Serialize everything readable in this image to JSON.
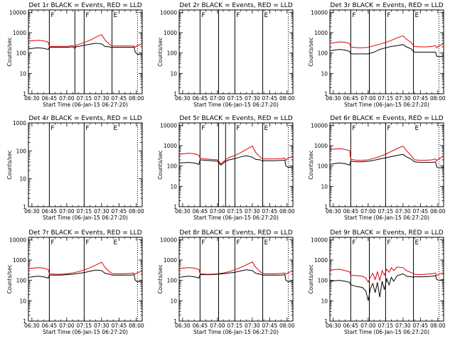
{
  "figure": {
    "xlabel": "Start Time (06-Jan-15 06:27:20)",
    "ylabel": "Counts/sec",
    "x_tick_labels": [
      "06:30",
      "06:45",
      "07:00",
      "07:15",
      "07:30",
      "07:45",
      "08:00"
    ],
    "x_tick_minutes": [
      0,
      15,
      30,
      45,
      60,
      75,
      90
    ],
    "y_tick_labels": [
      "1",
      "10",
      "100",
      "1000",
      "10000"
    ],
    "y_tick_values": [
      1,
      10,
      100,
      1000,
      10000
    ],
    "colors": {
      "events": "#000000",
      "lld": "#e00000",
      "axes": "#000000",
      "background": "#ffffff"
    }
  },
  "chart_data": [
    {
      "type": "line",
      "title": "Det 1r BLACK = Events, RED = LLD",
      "xlabel": "Start Time (06-Jan-15 06:27:20)",
      "ylabel": "Counts/sec",
      "yscale": "log",
      "xlim": [
        -3,
        95
      ],
      "ylim": [
        1,
        13000
      ],
      "vlines_minutes": [
        15,
        37,
        45,
        69
      ],
      "dotted_vlines_minutes": [
        91
      ],
      "marker_letters": [
        {
          "text": "F",
          "minute": 15
        },
        {
          "text": "F",
          "minute": 45
        },
        {
          "text": "E",
          "minute": 69
        }
      ],
      "x": [
        -3,
        5,
        10,
        14,
        15,
        20,
        25,
        30,
        35,
        37,
        38,
        40,
        45,
        50,
        55,
        60,
        63,
        67,
        69,
        70,
        75,
        80,
        85,
        88,
        89,
        91,
        95
      ],
      "series": [
        {
          "name": "Events",
          "color": "#000000",
          "values": [
            160,
            180,
            170,
            150,
            190,
            190,
            190,
            190,
            200,
            170,
            200,
            210,
            240,
            270,
            300,
            280,
            210,
            200,
            180,
            190,
            190,
            190,
            190,
            190,
            110,
            85,
            90
          ]
        },
        {
          "name": "LLD",
          "color": "#e00000",
          "values": [
            380,
            420,
            400,
            340,
            210,
            210,
            210,
            210,
            230,
            200,
            240,
            260,
            330,
            420,
            600,
            800,
            430,
            260,
            220,
            220,
            220,
            220,
            220,
            220,
            190,
            240,
            260
          ]
        }
      ]
    },
    {
      "type": "line",
      "title": "Det 2r BLACK = Events, RED = LLD",
      "xlabel": "Start Time (06-Jan-15 06:27:20)",
      "ylabel": "Counts/sec",
      "yscale": "log",
      "xlim": [
        -3,
        95
      ],
      "ylim": [
        1,
        13000
      ],
      "vlines_minutes": [
        15,
        31,
        45,
        69
      ],
      "dotted_vlines_minutes": [
        91
      ],
      "marker_letters": [
        {
          "text": "F",
          "minute": 15
        },
        {
          "text": "F",
          "minute": 45
        },
        {
          "text": "E",
          "minute": 69
        }
      ],
      "x": [],
      "series": [
        {
          "name": "Events",
          "color": "#000000",
          "values": []
        },
        {
          "name": "LLD",
          "color": "#e00000",
          "values": []
        }
      ]
    },
    {
      "type": "line",
      "title": "Det 3r BLACK = Events, RED = LLD",
      "xlabel": "Start Time (06-Jan-15 06:27:20)",
      "ylabel": "Counts/sec",
      "yscale": "log",
      "xlim": [
        -3,
        95
      ],
      "ylim": [
        1,
        13000
      ],
      "vlines_minutes": [
        15,
        31,
        45,
        69
      ],
      "dotted_vlines_minutes": [
        91
      ],
      "marker_letters": [
        {
          "text": "F",
          "minute": 15
        },
        {
          "text": "F",
          "minute": 45
        },
        {
          "text": "E",
          "minute": 69
        }
      ],
      "x": [
        -3,
        5,
        10,
        14,
        15,
        20,
        25,
        30,
        35,
        40,
        45,
        50,
        55,
        60,
        63,
        67,
        69,
        70,
        75,
        80,
        85,
        88,
        89,
        91,
        95
      ],
      "series": [
        {
          "name": "Events",
          "color": "#000000",
          "values": [
            130,
            150,
            140,
            120,
            90,
            90,
            90,
            90,
            110,
            150,
            180,
            210,
            230,
            260,
            200,
            160,
            120,
            110,
            110,
            110,
            110,
            110,
            70,
            65,
            70
          ]
        },
        {
          "name": "LLD",
          "color": "#e00000",
          "values": [
            300,
            350,
            340,
            290,
            200,
            180,
            180,
            190,
            230,
            270,
            330,
            420,
            560,
            700,
            480,
            330,
            230,
            210,
            200,
            200,
            210,
            230,
            180,
            230,
            280
          ]
        }
      ]
    },
    {
      "type": "line",
      "title": "Det 4r BLACK = Events, RED = LLD",
      "xlabel": "Start Time (06-Jan-15 06:27:20)",
      "ylabel": "Counts/sec",
      "yscale": "log",
      "xlim": [
        -3,
        95
      ],
      "ylim": [
        1,
        1000
      ],
      "vlines_minutes": [
        15,
        45
      ],
      "dotted_vlines_minutes": [
        91
      ],
      "marker_letters": [
        {
          "text": "F",
          "minute": 15
        },
        {
          "text": "F",
          "minute": 45
        },
        {
          "text": "E",
          "minute": 69
        }
      ],
      "x": [],
      "series": [
        {
          "name": "Events",
          "color": "#000000",
          "values": []
        },
        {
          "name": "LLD",
          "color": "#e00000",
          "values": []
        }
      ]
    },
    {
      "type": "line",
      "title": "Det 5r BLACK = Events, RED = LLD",
      "xlabel": "Start Time (06-Jan-15 06:27:20)",
      "ylabel": "Counts/sec",
      "yscale": "log",
      "xlim": [
        -3,
        95
      ],
      "ylim": [
        1,
        13000
      ],
      "vlines_minutes": [
        15,
        31,
        37,
        45,
        69
      ],
      "dotted_vlines_minutes": [
        91
      ],
      "marker_letters": [
        {
          "text": "F",
          "minute": 15
        },
        {
          "text": "F",
          "minute": 45
        },
        {
          "text": "E",
          "minute": 69
        }
      ],
      "x": [
        -3,
        5,
        10,
        14,
        15,
        20,
        25,
        30,
        33,
        37,
        40,
        45,
        50,
        55,
        60,
        63,
        67,
        69,
        70,
        75,
        80,
        85,
        88,
        89,
        91,
        95
      ],
      "series": [
        {
          "name": "Events",
          "color": "#000000",
          "values": [
            140,
            150,
            140,
            120,
            200,
            190,
            180,
            170,
            110,
            170,
            200,
            230,
            280,
            320,
            270,
            210,
            200,
            170,
            180,
            180,
            180,
            190,
            190,
            100,
            85,
            90
          ]
        },
        {
          "name": "LLD",
          "color": "#e00000",
          "values": [
            380,
            420,
            400,
            340,
            240,
            220,
            210,
            200,
            130,
            200,
            260,
            330,
            450,
            650,
            950,
            450,
            270,
            220,
            220,
            220,
            220,
            230,
            240,
            190,
            250,
            280
          ]
        }
      ]
    },
    {
      "type": "line",
      "title": "Det 6r BLACK = Events, RED = LLD",
      "xlabel": "Start Time (06-Jan-15 06:27:20)",
      "ylabel": "Counts/sec",
      "yscale": "log",
      "xlim": [
        -3,
        95
      ],
      "ylim": [
        1,
        13000
      ],
      "vlines_minutes": [
        15,
        45
      ],
      "dotted_vlines_minutes": [
        91
      ],
      "marker_letters": [
        {
          "text": "F",
          "minute": 15
        },
        {
          "text": "F",
          "minute": 45
        },
        {
          "text": "E",
          "minute": 69
        }
      ],
      "x": [
        -3,
        5,
        10,
        14,
        15,
        20,
        25,
        30,
        35,
        40,
        45,
        50,
        55,
        60,
        63,
        67,
        69,
        70,
        75,
        80,
        85,
        88,
        89,
        91,
        95
      ],
      "series": [
        {
          "name": "Events",
          "color": "#000000",
          "values": [
            120,
            140,
            130,
            110,
            170,
            160,
            160,
            170,
            190,
            220,
            250,
            290,
            330,
            370,
            280,
            220,
            170,
            160,
            150,
            150,
            150,
            160,
            90,
            80,
            85
          ]
        },
        {
          "name": "LLD",
          "color": "#e00000",
          "values": [
            650,
            700,
            650,
            560,
            210,
            190,
            190,
            200,
            240,
            290,
            380,
            520,
            720,
            950,
            560,
            330,
            230,
            200,
            190,
            190,
            200,
            220,
            180,
            230,
            300
          ]
        }
      ]
    },
    {
      "type": "line",
      "title": "Det 7r BLACK = Events, RED = LLD",
      "xlabel": "Start Time (06-Jan-15 06:27:20)",
      "ylabel": "Counts/sec",
      "yscale": "log",
      "xlim": [
        -3,
        95
      ],
      "ylim": [
        1,
        13000
      ],
      "vlines_minutes": [
        15,
        45
      ],
      "dotted_vlines_minutes": [
        91
      ],
      "marker_letters": [
        {
          "text": "F",
          "minute": 15
        },
        {
          "text": "F",
          "minute": 45
        },
        {
          "text": "E",
          "minute": 69
        }
      ],
      "x": [
        -3,
        5,
        10,
        14,
        15,
        20,
        25,
        30,
        35,
        40,
        45,
        50,
        55,
        60,
        63,
        67,
        69,
        70,
        75,
        80,
        85,
        88,
        89,
        91,
        95
      ],
      "series": [
        {
          "name": "Events",
          "color": "#000000",
          "values": [
            140,
            160,
            150,
            130,
            180,
            180,
            180,
            190,
            200,
            220,
            240,
            280,
            320,
            300,
            220,
            200,
            180,
            180,
            180,
            180,
            180,
            190,
            100,
            85,
            90
          ]
        },
        {
          "name": "LLD",
          "color": "#e00000",
          "values": [
            380,
            420,
            400,
            340,
            210,
            200,
            200,
            210,
            230,
            270,
            320,
            420,
            560,
            780,
            430,
            260,
            220,
            210,
            210,
            210,
            220,
            230,
            200,
            240,
            280
          ]
        }
      ]
    },
    {
      "type": "line",
      "title": "Det 8r BLACK = Events, RED = LLD",
      "xlabel": "Start Time (06-Jan-15 06:27:20)",
      "ylabel": "Counts/sec",
      "yscale": "log",
      "xlim": [
        -3,
        95
      ],
      "ylim": [
        1,
        13000
      ],
      "vlines_minutes": [
        15,
        31,
        45,
        69
      ],
      "dotted_vlines_minutes": [
        91
      ],
      "marker_letters": [
        {
          "text": "F",
          "minute": 15
        },
        {
          "text": "F",
          "minute": 45
        },
        {
          "text": "E",
          "minute": 69
        }
      ],
      "x": [
        -3,
        5,
        10,
        14,
        15,
        20,
        25,
        30,
        35,
        40,
        45,
        50,
        55,
        60,
        63,
        67,
        69,
        70,
        75,
        80,
        85,
        88,
        89,
        91,
        95
      ],
      "series": [
        {
          "name": "Events",
          "color": "#000000",
          "values": [
            140,
            160,
            150,
            130,
            190,
            190,
            190,
            200,
            210,
            230,
            250,
            290,
            330,
            300,
            220,
            200,
            180,
            180,
            180,
            180,
            180,
            190,
            100,
            85,
            90
          ]
        },
        {
          "name": "LLD",
          "color": "#e00000",
          "values": [
            380,
            420,
            400,
            340,
            210,
            200,
            200,
            210,
            230,
            270,
            330,
            430,
            580,
            800,
            440,
            260,
            220,
            210,
            210,
            210,
            220,
            230,
            200,
            240,
            280
          ]
        }
      ]
    },
    {
      "type": "line",
      "title": "Det 9r BLACK = Events, RED = LLD",
      "xlabel": "Start Time (06-Jan-15 06:27:20)",
      "ylabel": "Counts/sec",
      "yscale": "log",
      "xlim": [
        -3,
        95
      ],
      "ylim": [
        1,
        13000
      ],
      "vlines_minutes": [
        15,
        31,
        45,
        69
      ],
      "dotted_vlines_minutes": [
        91
      ],
      "marker_letters": [
        {
          "text": "F",
          "minute": 15
        },
        {
          "text": "F",
          "minute": 45
        },
        {
          "text": "E",
          "minute": 69
        }
      ],
      "x": [
        -3,
        5,
        10,
        14,
        15,
        20,
        25,
        28,
        30,
        32,
        34,
        36,
        38,
        40,
        42,
        44,
        46,
        48,
        50,
        52,
        55,
        60,
        63,
        67,
        69,
        70,
        75,
        80,
        85,
        88,
        89,
        91,
        95
      ],
      "series": [
        {
          "name": "Events",
          "color": "#000000",
          "values": [
            90,
            100,
            90,
            80,
            60,
            50,
            45,
            30,
            10,
            40,
            70,
            25,
            80,
            15,
            90,
            35,
            120,
            60,
            140,
            90,
            170,
            210,
            160,
            150,
            140,
            150,
            150,
            150,
            160,
            170,
            110,
            100,
            110
          ]
        },
        {
          "name": "LLD",
          "color": "#e00000",
          "values": [
            320,
            350,
            300,
            260,
            180,
            170,
            160,
            130,
            80,
            150,
            220,
            110,
            260,
            100,
            300,
            180,
            350,
            250,
            420,
            300,
            450,
            420,
            300,
            240,
            220,
            200,
            190,
            200,
            210,
            230,
            170,
            200,
            240
          ]
        }
      ]
    }
  ]
}
